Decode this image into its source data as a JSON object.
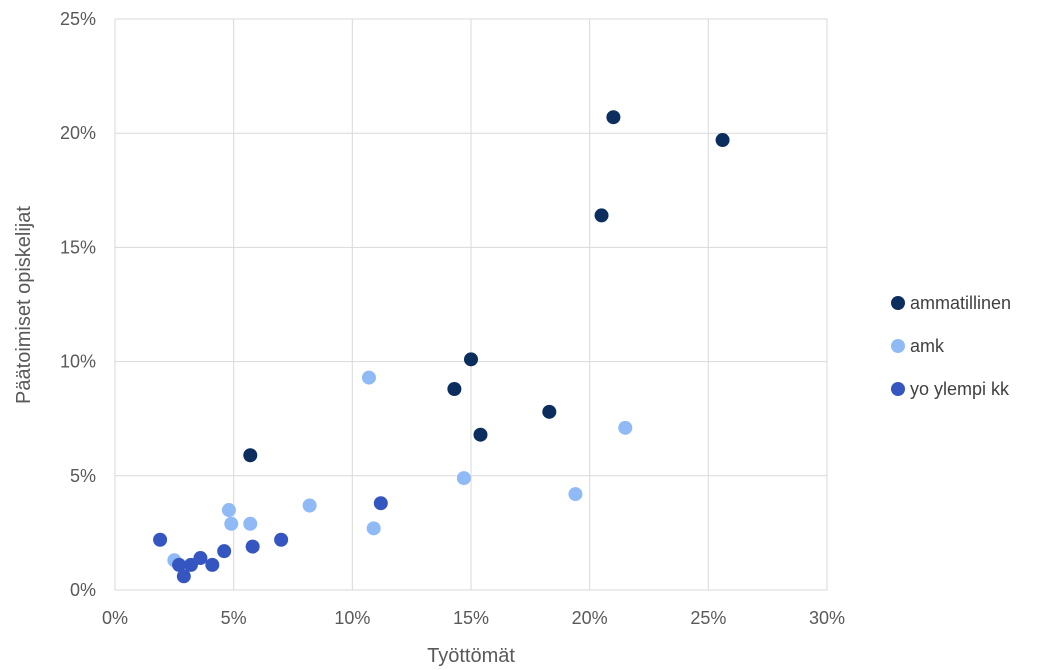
{
  "chart_data": {
    "type": "scatter",
    "title": "",
    "xlabel": "Työttömät",
    "ylabel": "Päätoimiset opiskelijat",
    "xlim": [
      0,
      0.3
    ],
    "ylim": [
      0,
      0.25
    ],
    "xticks": [
      0,
      0.05,
      0.1,
      0.15,
      0.2,
      0.25,
      0.3
    ],
    "yticks": [
      0,
      0.05,
      0.1,
      0.15,
      0.2,
      0.25
    ],
    "xtick_labels": [
      "0%",
      "5%",
      "10%",
      "15%",
      "20%",
      "25%",
      "30%"
    ],
    "ytick_labels": [
      "0%",
      "5%",
      "10%",
      "15%",
      "20%",
      "25%"
    ],
    "grid": true,
    "legend_position": "right",
    "series": [
      {
        "name": "ammatillinen",
        "color": "#0b2e5f",
        "points": [
          [
            0.21,
            0.207
          ],
          [
            0.256,
            0.197
          ],
          [
            0.205,
            0.164
          ],
          [
            0.15,
            0.101
          ],
          [
            0.143,
            0.088
          ],
          [
            0.183,
            0.078
          ],
          [
            0.154,
            0.068
          ],
          [
            0.057,
            0.059
          ]
        ]
      },
      {
        "name": "amk",
        "color": "#8fbaf6",
        "points": [
          [
            0.107,
            0.093
          ],
          [
            0.215,
            0.071
          ],
          [
            0.147,
            0.049
          ],
          [
            0.194,
            0.042
          ],
          [
            0.082,
            0.037
          ],
          [
            0.048,
            0.035
          ],
          [
            0.049,
            0.029
          ],
          [
            0.057,
            0.029
          ],
          [
            0.109,
            0.027
          ],
          [
            0.025,
            0.013
          ]
        ]
      },
      {
        "name": "yo ylempi kk",
        "color": "#3556c0",
        "points": [
          [
            0.112,
            0.038
          ],
          [
            0.07,
            0.022
          ],
          [
            0.019,
            0.022
          ],
          [
            0.058,
            0.019
          ],
          [
            0.046,
            0.017
          ],
          [
            0.036,
            0.014
          ],
          [
            0.041,
            0.011
          ],
          [
            0.027,
            0.011
          ],
          [
            0.032,
            0.011
          ],
          [
            0.029,
            0.006
          ]
        ]
      }
    ]
  }
}
